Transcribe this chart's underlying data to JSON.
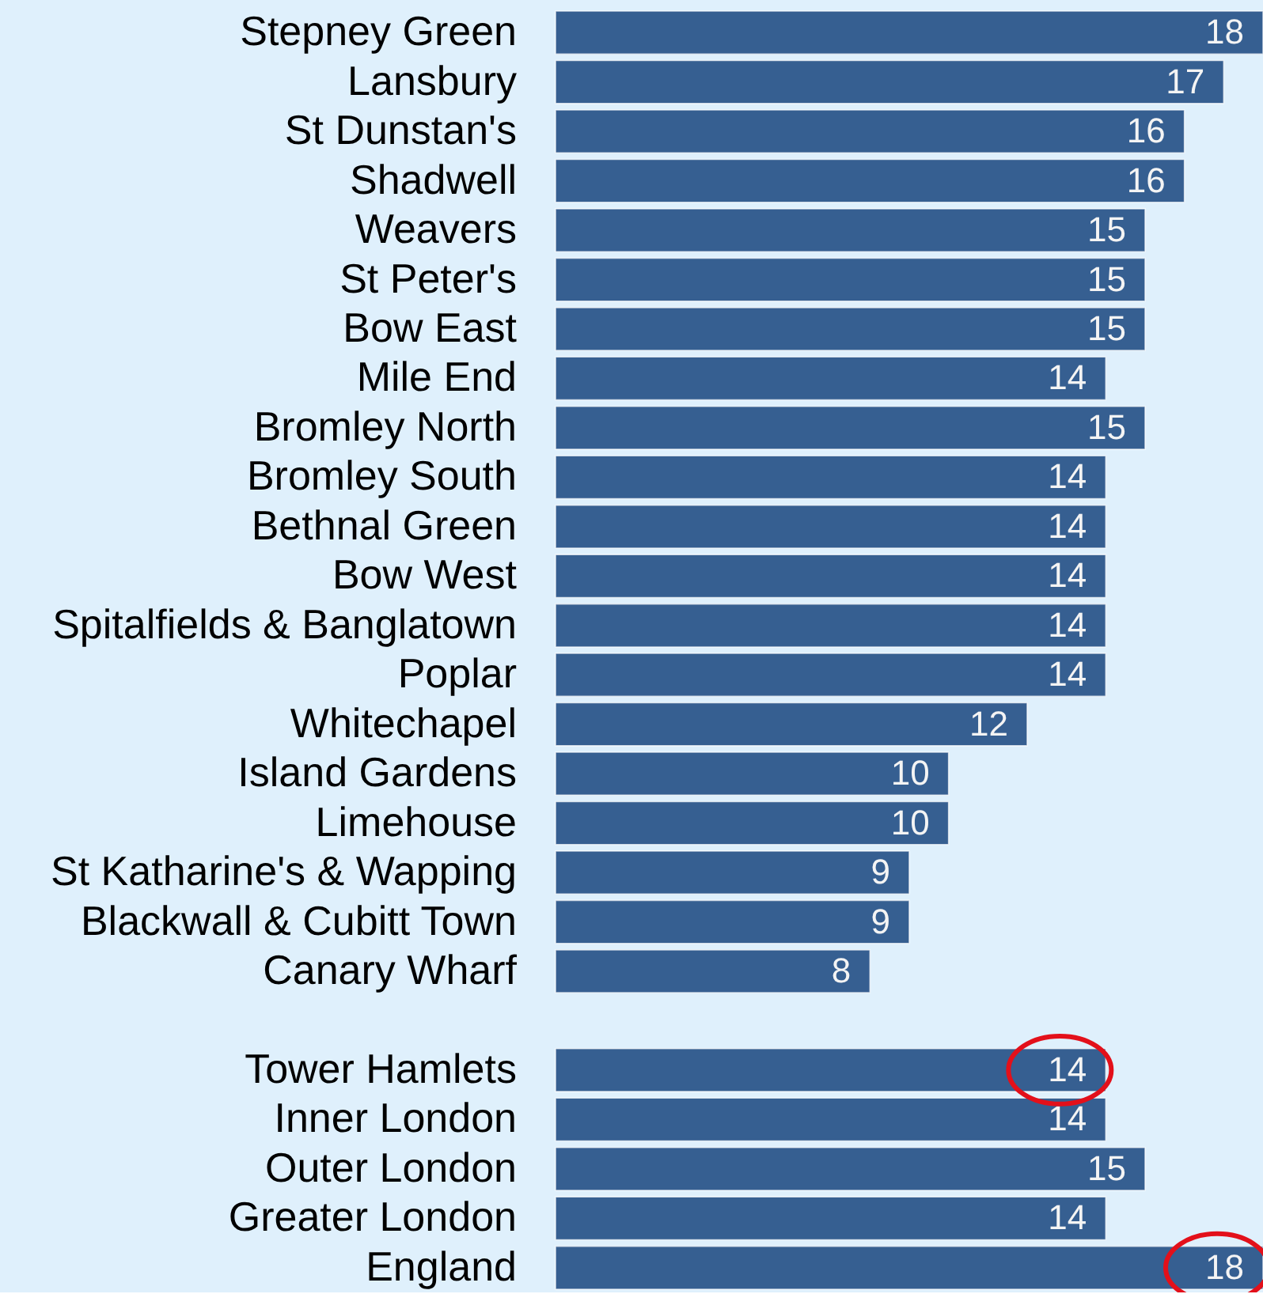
{
  "chart_data": {
    "type": "bar",
    "orientation": "horizontal",
    "categories": [
      "Stepney Green",
      "Lansbury",
      "St Dunstan's",
      "Shadwell",
      "Weavers",
      "St Peter's",
      "Bow East",
      "Mile End",
      "Bromley North",
      "Bromley South",
      "Bethnal Green",
      "Bow West",
      "Spitalfields & Banglatown",
      "Poplar",
      "Whitechapel",
      "Island Gardens",
      "Limehouse",
      "St Katharine's & Wapping",
      "Blackwall & Cubitt Town",
      "Canary Wharf",
      null,
      "Tower Hamlets",
      "Inner London",
      "Outer London",
      "Greater London",
      "England"
    ],
    "values": [
      18,
      17,
      16,
      16,
      15,
      15,
      15,
      14,
      15,
      14,
      14,
      14,
      14,
      14,
      12,
      10,
      10,
      9,
      9,
      8,
      null,
      14,
      14,
      15,
      14,
      18
    ],
    "color": "#365f91",
    "data_labels": true
  }
}
